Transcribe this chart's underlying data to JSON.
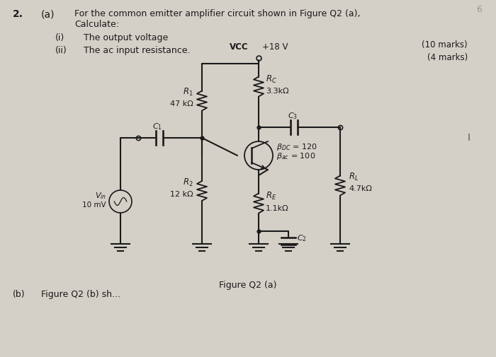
{
  "bg_color": "#d4d0c8",
  "text_color": "#1a1a1a",
  "question_number": "2.",
  "part_a": "(a)",
  "question_text_line1": "For the common emitter amplifier circuit shown in Figure Q2 (a),",
  "question_text_line2": "Calculate:",
  "sub_i": "(i)",
  "sub_i_text": "The output voltage",
  "sub_ii": "(ii)",
  "sub_ii_text": "The ac input resistance.",
  "marks_10": "(10 marks)",
  "marks_4": "(4 marks)",
  "rc_label": "$R_C$",
  "rc_value": "3.3kΩ",
  "r1_label": "$R_1$",
  "r1_value": "47 kΩ",
  "r2_label": "$R_2$",
  "r2_value": "12 kΩ",
  "re_label": "$R_E$",
  "re_value": "1.1kΩ",
  "rl_label": "$R_L$",
  "rl_value": "4.7kΩ",
  "c1_label": "$C_1$",
  "c2_label": "$C_2$",
  "c3_label": "$C_3$",
  "beta_dc": "$\\beta_{DC}$ = 120",
  "beta_ac": "$\\beta_{ac}$ = 100",
  "vin_label": "$V_{in}$",
  "vin_value": "10 mV",
  "vcc_label": "VCC",
  "vcc_voltage": "+18 V",
  "figure_label": "Figure Q2 (a)",
  "fig_width": 7.0,
  "fig_height": 5.05
}
